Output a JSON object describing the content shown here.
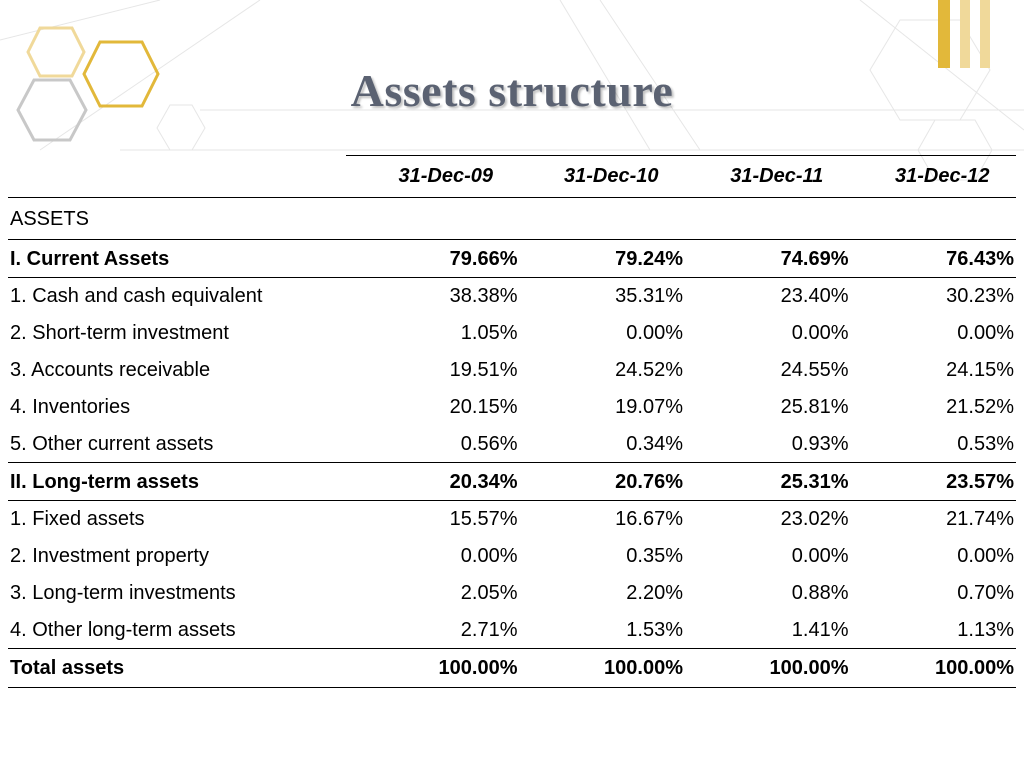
{
  "title": "Assets structure",
  "colors": {
    "gold": "#e2b83a",
    "gold_light": "#f0d99a",
    "grey": "#c8c8c8",
    "title": "#5b6272"
  },
  "table": {
    "headers": [
      "31-Dec-09",
      "31-Dec-10",
      "31-Dec-11",
      "31-Dec-12"
    ],
    "section_label": "ASSETS",
    "current": {
      "label": "I. Current Assets",
      "values": [
        "79.66%",
        "79.24%",
        "74.69%",
        "76.43%"
      ],
      "items": [
        {
          "label": "1. Cash and cash equivalent",
          "values": [
            "38.38%",
            "35.31%",
            "23.40%",
            "30.23%"
          ]
        },
        {
          "label": "2. Short-term investment",
          "values": [
            "1.05%",
            "0.00%",
            "0.00%",
            "0.00%"
          ]
        },
        {
          "label": "3. Accounts receivable",
          "values": [
            "19.51%",
            "24.52%",
            "24.55%",
            "24.15%"
          ]
        },
        {
          "label": "4. Inventories",
          "values": [
            "20.15%",
            "19.07%",
            "25.81%",
            "21.52%"
          ]
        },
        {
          "label": "5. Other current assets",
          "values": [
            "0.56%",
            "0.34%",
            "0.93%",
            "0.53%"
          ]
        }
      ]
    },
    "longterm": {
      "label": "II. Long-term assets",
      "values": [
        "20.34%",
        "20.76%",
        "25.31%",
        "23.57%"
      ],
      "items": [
        {
          "label": "1. Fixed assets",
          "values": [
            "15.57%",
            "16.67%",
            "23.02%",
            "21.74%"
          ]
        },
        {
          "label": "2. Investment property",
          "values": [
            "0.00%",
            "0.35%",
            "0.00%",
            "0.00%"
          ]
        },
        {
          "label": "3. Long-term investments",
          "values": [
            "2.05%",
            "2.20%",
            "0.88%",
            "0.70%"
          ]
        },
        {
          "label": "4. Other long-term assets",
          "values": [
            "2.71%",
            "1.53%",
            "1.41%",
            "1.13%"
          ]
        }
      ]
    },
    "total": {
      "label": "Total assets",
      "values": [
        "100.00%",
        "100.00%",
        "100.00%",
        "100.00%"
      ]
    }
  }
}
